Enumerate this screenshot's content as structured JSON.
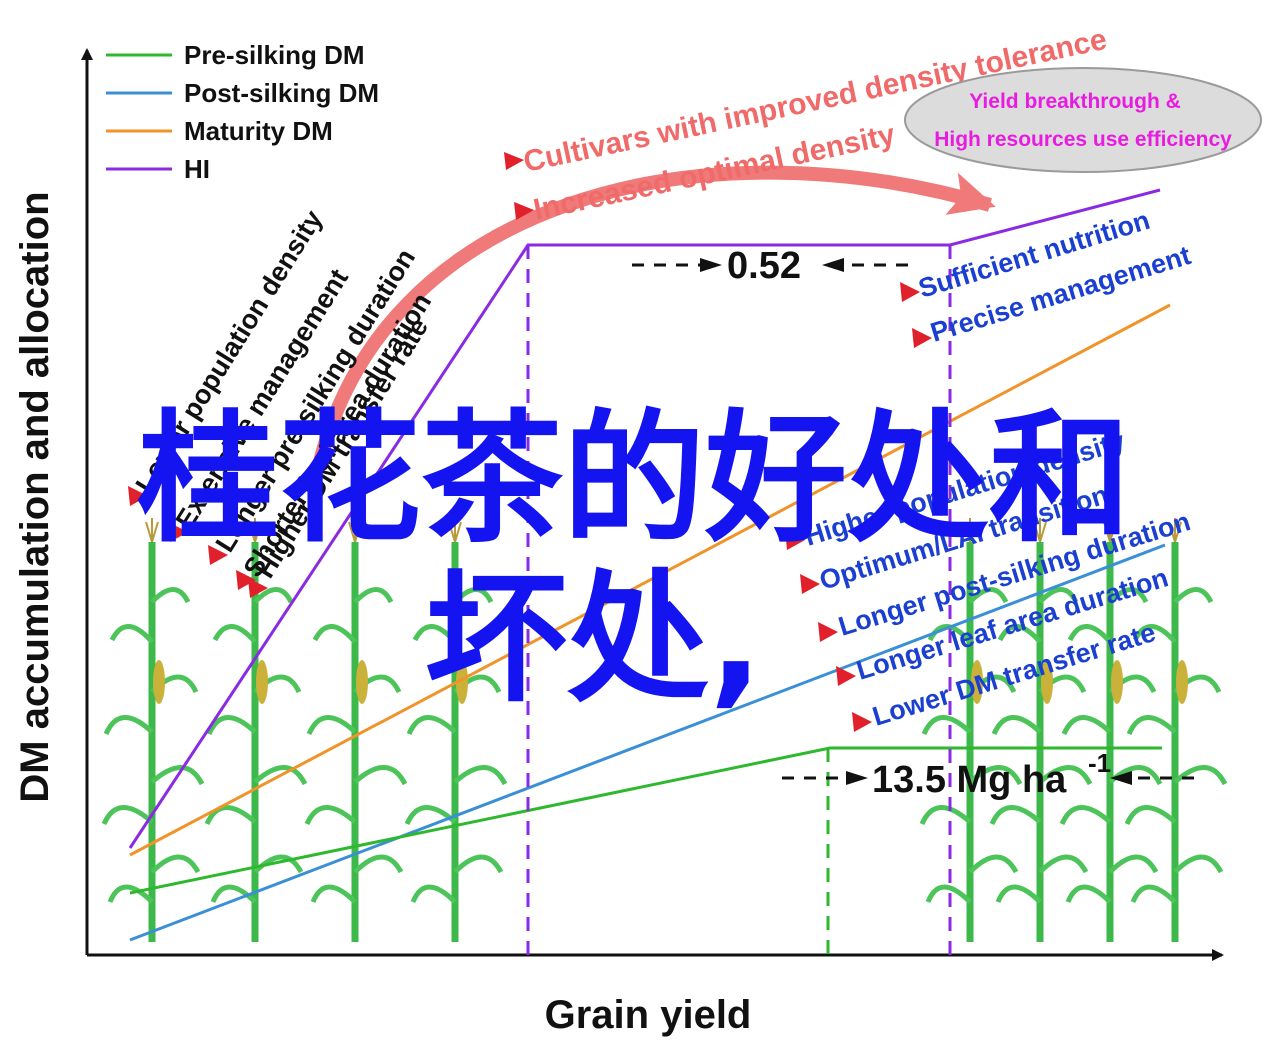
{
  "diagram": {
    "y_axis_title": "DM accumulation and allocation",
    "x_axis_title": "Grain yield",
    "legend": [
      {
        "label": "Pre-silking DM",
        "color": "#2eb82e"
      },
      {
        "label": "Post-silking DM",
        "color": "#3a8fd6"
      },
      {
        "label": "Maturity DM",
        "color": "#f0932a"
      },
      {
        "label": "HI",
        "color": "#8a2be2"
      }
    ],
    "top_annotations": [
      "Cultivars with improved density tolerance",
      "Increased optimal density"
    ],
    "ellipse": {
      "line1": "Yield breakthrough &",
      "line2": "High resources use efficiency"
    },
    "hi_gap_label": "0.52",
    "yield_label": "13.5 Mg ha",
    "yield_label_sup": "-1",
    "left_factors": [
      "Lower population density",
      "Extensive management",
      "Longer pre-silking duration",
      "Shorter leaf area duration",
      "Higher DM transfer rate"
    ],
    "right_factors_top": [
      "Sufficient nutrition",
      "Precise management"
    ],
    "right_factors_bottom": [
      "Higher population density",
      "Optimum/LAI transition",
      "Longer post-silking duration",
      "Longer leaf area duration",
      "Lower DM transfer rate"
    ],
    "overlay_title_line1": "桂花茶的好处和",
    "overlay_title_line2": "坏处,"
  }
}
